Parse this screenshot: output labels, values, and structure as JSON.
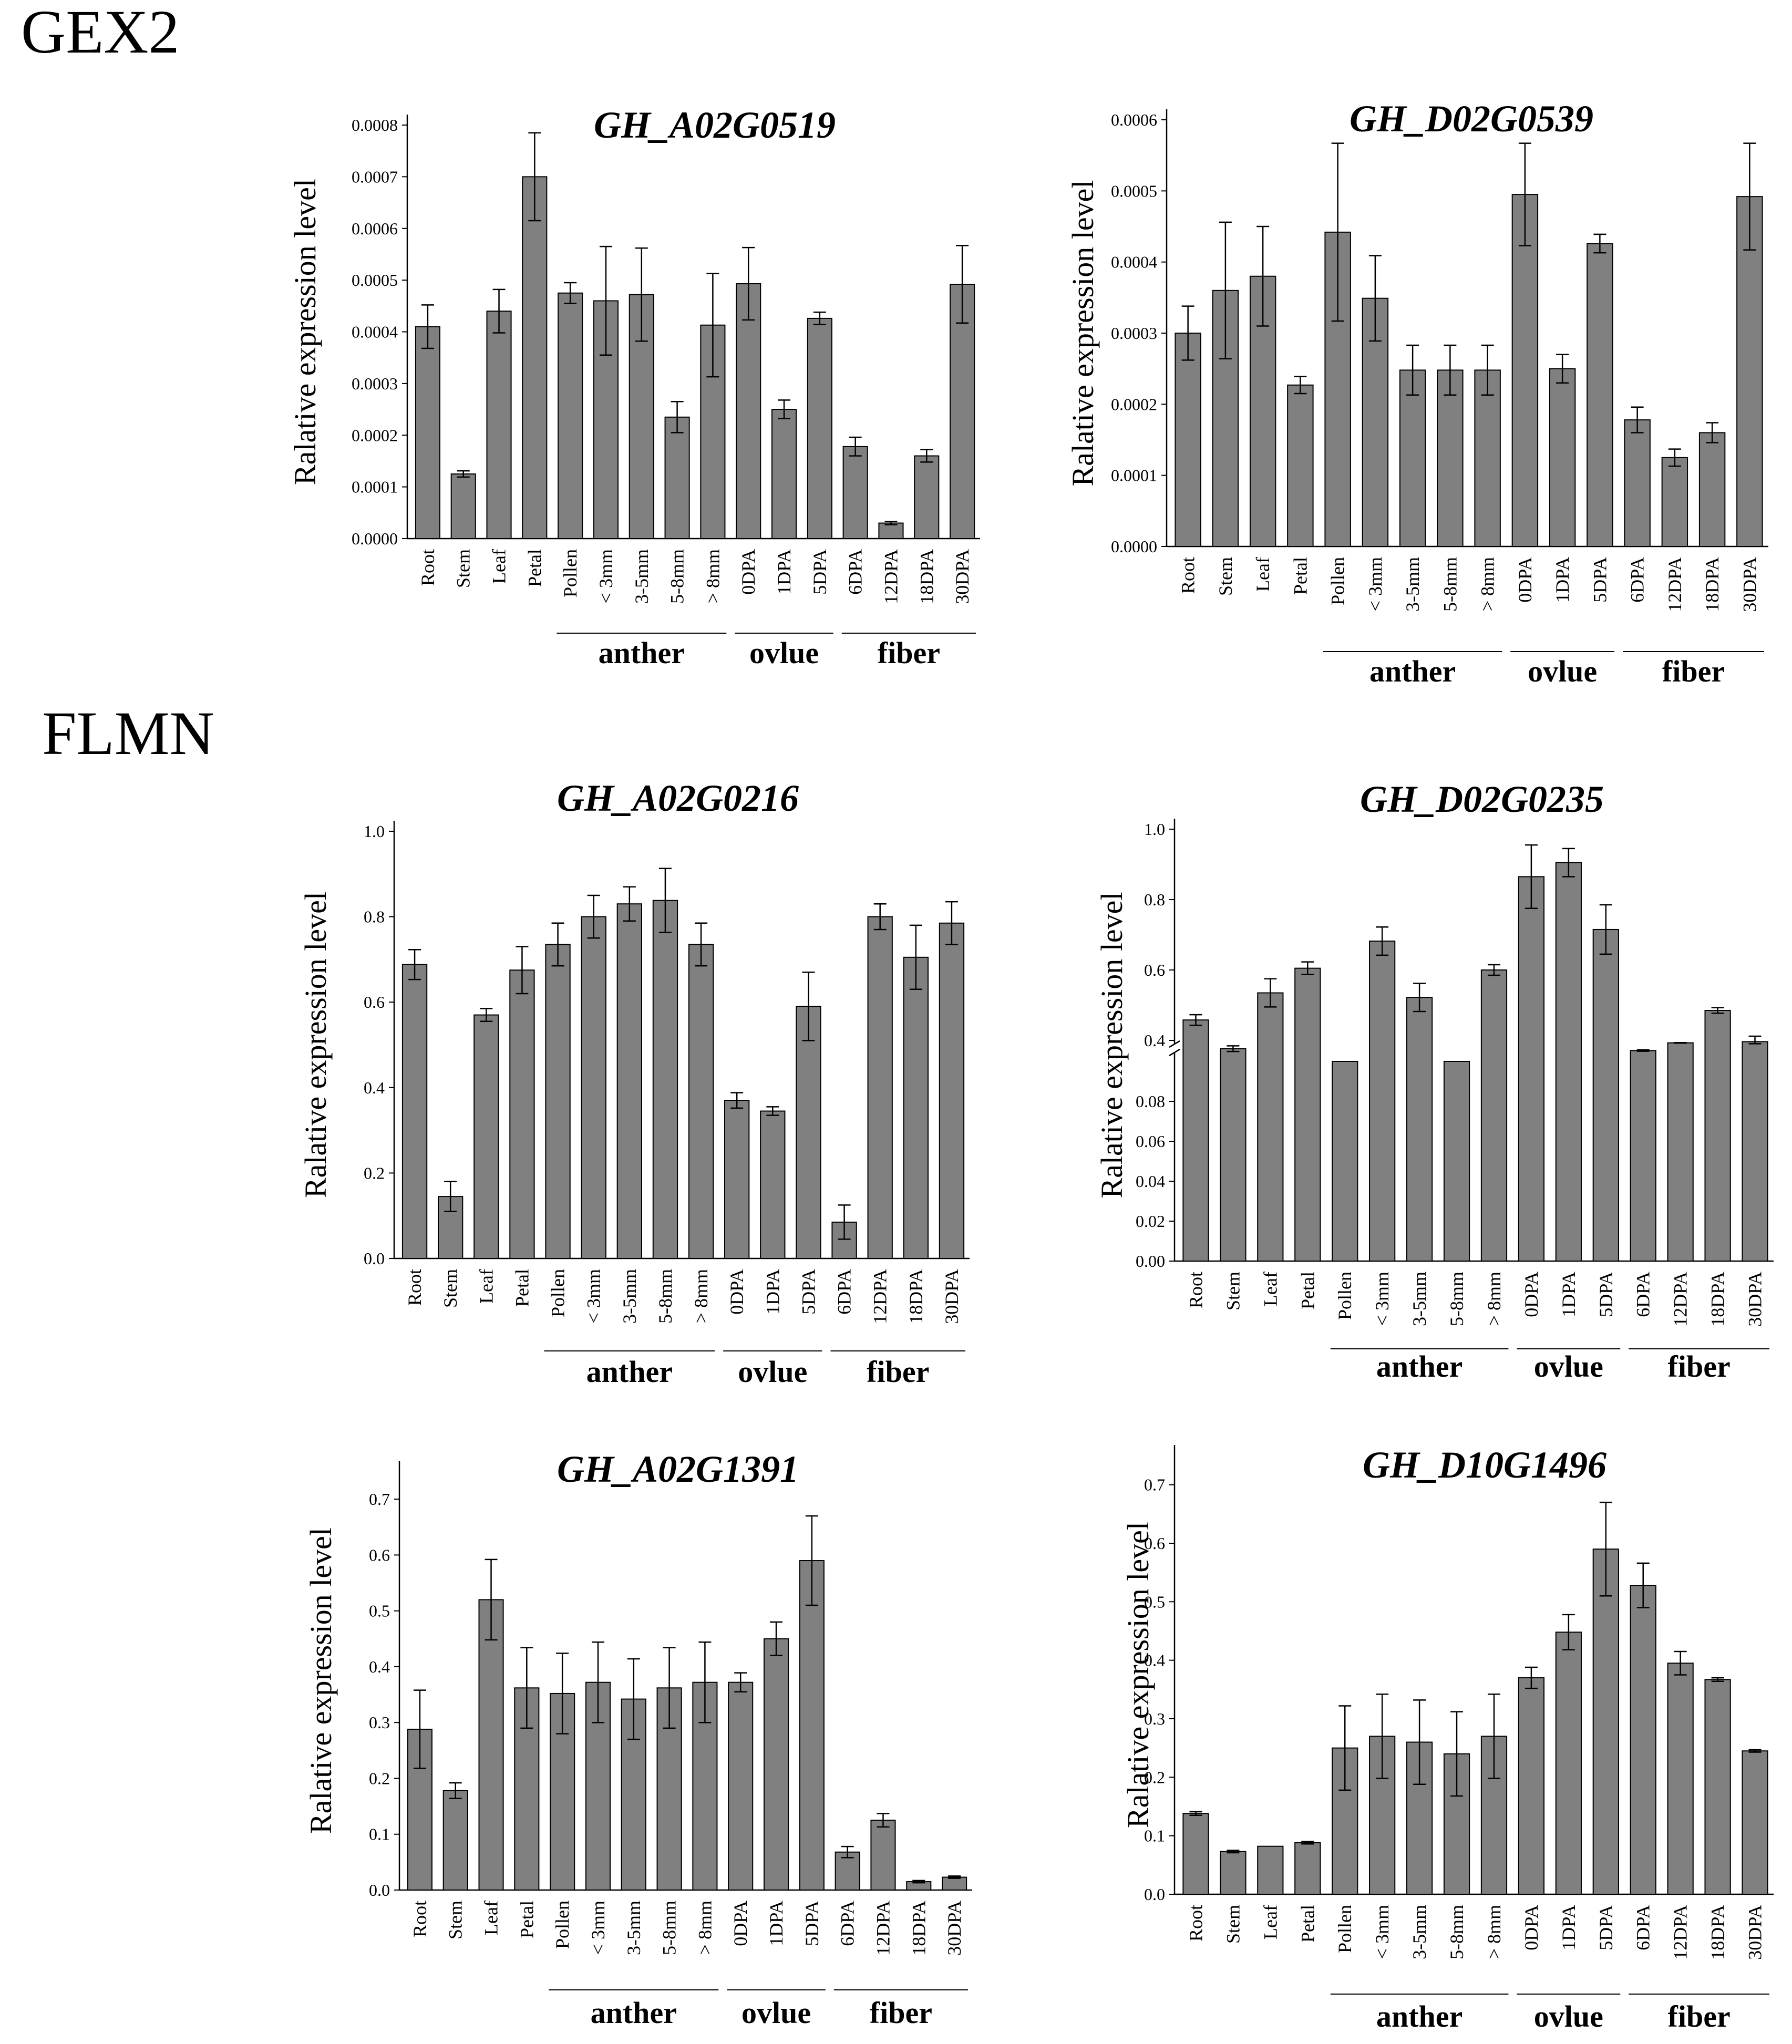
{
  "sections": [
    "GEX2",
    "FLMN"
  ],
  "chart_data": [
    {
      "type": "bar",
      "title": "GH_A02G0519",
      "ylabel": "Ralative expression level",
      "ylim": [
        0,
        0.0008
      ],
      "yticks": [
        "0.0000",
        "0.0001",
        "0.0002",
        "0.0003",
        "0.0004",
        "0.0005",
        "0.0006",
        "0.0007",
        "0.0008"
      ],
      "categories": [
        "Root",
        "Stem",
        "Leaf",
        "Petal",
        "Pollen",
        "< 3mm",
        "3-5mm",
        "5-8mm",
        "> 8mm",
        "0DPA",
        "1DPA",
        "5DPA",
        "6DPA",
        "12DPA",
        "18DPA",
        "30DPA"
      ],
      "values": [
        0.00041,
        0.000125,
        0.00044,
        0.0007,
        0.000475,
        0.00046,
        0.000472,
        0.000235,
        0.000413,
        0.000493,
        0.00025,
        0.000426,
        0.000178,
        3e-05,
        0.00016,
        0.000492
      ],
      "errors": [
        4.2e-05,
        6e-06,
        4.2e-05,
        8.5e-05,
        2e-05,
        0.000105,
        9e-05,
        3e-05,
        0.0001,
        7e-05,
        1.8e-05,
        1.2e-05,
        1.8e-05,
        3e-06,
        1.2e-05,
        7.5e-05
      ],
      "groups": [
        {
          "label": "anther",
          "from": 4,
          "to": 8
        },
        {
          "label": "ovlue",
          "from": 9,
          "to": 11
        },
        {
          "label": "fiber",
          "from": 12,
          "to": 15
        }
      ]
    },
    {
      "type": "bar",
      "title": "GH_D02G0539",
      "ylabel": "Ralative expression level",
      "ylim": [
        0,
        0.0006
      ],
      "yticks": [
        "0.0000",
        "0.0001",
        "0.0002",
        "0.0003",
        "0.0004",
        "0.0005",
        "0.0006"
      ],
      "categories": [
        "Root",
        "Stem",
        "Leaf",
        "Petal",
        "Pollen",
        "< 3mm",
        "3-5mm",
        "5-8mm",
        "> 8mm",
        "0DPA",
        "1DPA",
        "5DPA",
        "6DPA",
        "12DPA",
        "18DPA",
        "30DPA"
      ],
      "values": [
        0.0003,
        0.00036,
        0.00038,
        0.000227,
        0.000442,
        0.000349,
        0.000248,
        0.000248,
        0.000248,
        0.000495,
        0.00025,
        0.000426,
        0.000178,
        0.000125,
        0.00016,
        0.000492
      ],
      "errors": [
        3.8e-05,
        9.6e-05,
        7e-05,
        1.2e-05,
        0.000125,
        6e-05,
        3.5e-05,
        3.5e-05,
        3.5e-05,
        7.2e-05,
        2e-05,
        1.3e-05,
        1.8e-05,
        1.2e-05,
        1.4e-05,
        7.5e-05
      ],
      "groups": [
        {
          "label": "anther",
          "from": 4,
          "to": 8
        },
        {
          "label": "ovlue",
          "from": 9,
          "to": 11
        },
        {
          "label": "fiber",
          "from": 12,
          "to": 15
        }
      ]
    },
    {
      "type": "bar",
      "title": "GH_A02G0216",
      "ylabel": "Ralative expression level",
      "ylim": [
        0,
        1.0
      ],
      "yticks": [
        "0.0",
        "0.2",
        "0.4",
        "0.6",
        "0.8",
        "1.0"
      ],
      "categories": [
        "Root",
        "Stem",
        "Leaf",
        "Petal",
        "Pollen",
        "< 3mm",
        "3-5mm",
        "5-8mm",
        "> 8mm",
        "0DPA",
        "1DPA",
        "5DPA",
        "6DPA",
        "12DPA",
        "18DPA",
        "30DPA"
      ],
      "values": [
        0.688,
        0.145,
        0.57,
        0.675,
        0.735,
        0.8,
        0.83,
        0.838,
        0.735,
        0.37,
        0.345,
        0.59,
        0.085,
        0.8,
        0.705,
        0.785
      ],
      "errors": [
        0.035,
        0.035,
        0.015,
        0.055,
        0.05,
        0.05,
        0.04,
        0.075,
        0.05,
        0.018,
        0.01,
        0.08,
        0.04,
        0.03,
        0.075,
        0.05
      ],
      "groups": [
        {
          "label": "anther",
          "from": 4,
          "to": 8
        },
        {
          "label": "ovlue",
          "from": 9,
          "to": 11
        },
        {
          "label": "fiber",
          "from": 12,
          "to": 15
        }
      ]
    },
    {
      "type": "bar",
      "title": "GH_D02G0235",
      "ylabel": "Ralative expression level",
      "broken_axis": true,
      "ylim_lower": [
        0,
        0.1
      ],
      "ylim_upper": [
        0.4,
        1.0
      ],
      "yticks_lower": [
        "0.00",
        "0.02",
        "0.04",
        "0.06",
        "0.08"
      ],
      "yticks_upper": [
        "0.4",
        "0.6",
        "0.8",
        "1.0"
      ],
      "categories": [
        "Root",
        "Stem",
        "Leaf",
        "Petal",
        "Pollen",
        "< 3mm",
        "3-5mm",
        "5-8mm",
        "> 8mm",
        "0DPA",
        "1DPA",
        "5DPA",
        "6DPA",
        "12DPA",
        "18DPA",
        "30DPA"
      ],
      "values": [
        0.458,
        0.282,
        0.535,
        0.605,
        0.1,
        0.682,
        0.522,
        0.1,
        0.6,
        0.865,
        0.905,
        0.715,
        0.255,
        0.365,
        0.485,
        0.382
      ],
      "errors": [
        0.015,
        0.04,
        0.04,
        0.018,
        0.0,
        0.04,
        0.04,
        0.0,
        0.015,
        0.09,
        0.04,
        0.07,
        0.01,
        0.003,
        0.008,
        0.03
      ],
      "groups": [
        {
          "label": "anther",
          "from": 4,
          "to": 8
        },
        {
          "label": "ovlue",
          "from": 9,
          "to": 11
        },
        {
          "label": "fiber",
          "from": 12,
          "to": 15
        }
      ]
    },
    {
      "type": "bar",
      "title": "GH_A02G1391",
      "ylabel": "Ralative expression level",
      "ylim": [
        0,
        0.75
      ],
      "yticks": [
        "0.0",
        "0.1",
        "0.2",
        "0.3",
        "0.4",
        "0.5",
        "0.6",
        "0.7"
      ],
      "categories": [
        "Root",
        "Stem",
        "Leaf",
        "Petal",
        "Pollen",
        "< 3mm",
        "3-5mm",
        "5-8mm",
        "> 8mm",
        "0DPA",
        "1DPA",
        "5DPA",
        "6DPA",
        "12DPA",
        "18DPA",
        "30DPA"
      ],
      "values": [
        0.288,
        0.178,
        0.52,
        0.362,
        0.352,
        0.372,
        0.342,
        0.362,
        0.372,
        0.372,
        0.45,
        0.59,
        0.068,
        0.125,
        0.015,
        0.023
      ],
      "errors": [
        0.07,
        0.014,
        0.072,
        0.072,
        0.072,
        0.072,
        0.072,
        0.072,
        0.072,
        0.017,
        0.03,
        0.08,
        0.01,
        0.012,
        0.002,
        0.002
      ],
      "groups": [
        {
          "label": "anther",
          "from": 4,
          "to": 8
        },
        {
          "label": "ovlue",
          "from": 9,
          "to": 11
        },
        {
          "label": "fiber",
          "from": 12,
          "to": 15
        }
      ]
    },
    {
      "type": "bar",
      "title": "GH_D10G1496",
      "ylabel": "Ralative expression level",
      "ylim": [
        0,
        0.75
      ],
      "yticks": [
        "0.0",
        "0.1",
        "0.2",
        "0.3",
        "0.4",
        "0.5",
        "0.6",
        "0.7"
      ],
      "categories": [
        "Root",
        "Stem",
        "Leaf",
        "Petal",
        "Pollen",
        "< 3mm",
        "3-5mm",
        "5-8mm",
        "> 8mm",
        "0DPA",
        "1DPA",
        "5DPA",
        "6DPA",
        "12DPA",
        "18DPA",
        "30DPA"
      ],
      "values": [
        0.138,
        0.073,
        0.082,
        0.088,
        0.25,
        0.27,
        0.26,
        0.24,
        0.27,
        0.37,
        0.448,
        0.59,
        0.528,
        0.395,
        0.367,
        0.245
      ],
      "errors": [
        0.003,
        0.002,
        0.0,
        0.002,
        0.072,
        0.072,
        0.072,
        0.072,
        0.072,
        0.018,
        0.03,
        0.08,
        0.038,
        0.02,
        0.003,
        0.002
      ],
      "groups": [
        {
          "label": "anther",
          "from": 4,
          "to": 8
        },
        {
          "label": "ovlue",
          "from": 9,
          "to": 11
        },
        {
          "label": "fiber",
          "from": 12,
          "to": 15
        }
      ]
    }
  ]
}
